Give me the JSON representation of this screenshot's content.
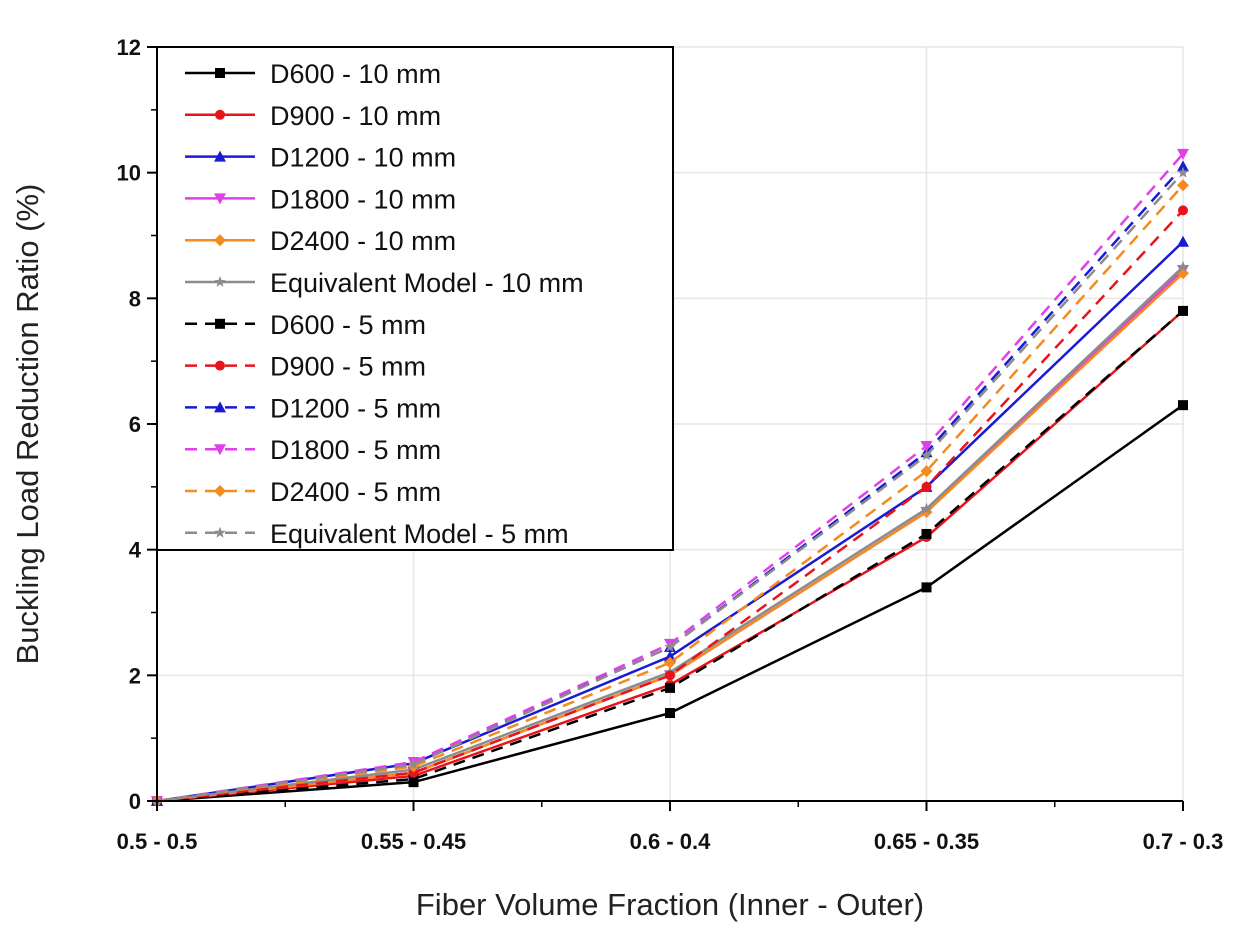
{
  "chart_data": {
    "type": "line",
    "title": "",
    "xlabel": "Fiber Volume Fraction (Inner - Outer)",
    "ylabel": "Buckling Load Reduction Ratio (%)",
    "categories": [
      "0.5 - 0.5",
      "0.55 - 0.45",
      "0.6 - 0.4",
      "0.65 - 0.35",
      "0.7 - 0.3"
    ],
    "ylim": [
      0,
      12
    ],
    "yticks": [
      "0",
      "2",
      "4",
      "6",
      "8",
      "10",
      "12"
    ],
    "grid": true,
    "legend_placement": "top-left",
    "series": [
      {
        "name": "D600 - 10 mm",
        "color": "#000000",
        "dash": false,
        "marker": "square",
        "values": [
          0,
          0.3,
          1.4,
          3.4,
          6.3
        ]
      },
      {
        "name": "D900 - 10 mm",
        "color": "#e8141c",
        "dash": false,
        "marker": "circle",
        "values": [
          0,
          0.4,
          1.85,
          4.2,
          7.8
        ]
      },
      {
        "name": "D1200 - 10 mm",
        "color": "#1a1ad4",
        "dash": false,
        "marker": "triangle-up",
        "values": [
          0,
          0.6,
          2.3,
          5.0,
          8.9
        ]
      },
      {
        "name": "D1800 - 10 mm",
        "color": "#e040e8",
        "dash": false,
        "marker": "triangle-down",
        "values": [
          0,
          0.45,
          2.0,
          4.6,
          8.45
        ]
      },
      {
        "name": "D2400 - 10 mm",
        "color": "#f58a1f",
        "dash": false,
        "marker": "diamond",
        "values": [
          0,
          0.45,
          2.0,
          4.6,
          8.4
        ]
      },
      {
        "name": "Equivalent Model - 10 mm",
        "color": "#8c8c8c",
        "dash": false,
        "marker": "star",
        "values": [
          0,
          0.5,
          2.05,
          4.65,
          8.5
        ]
      },
      {
        "name": "D600 - 5 mm",
        "color": "#000000",
        "dash": true,
        "marker": "square",
        "values": [
          0,
          0.35,
          1.8,
          4.25,
          7.8
        ]
      },
      {
        "name": "D900 - 5 mm",
        "color": "#e8141c",
        "dash": true,
        "marker": "circle",
        "values": [
          0,
          0.45,
          2.0,
          5.0,
          9.4
        ]
      },
      {
        "name": "D1200 - 5 mm",
        "color": "#1a1ad4",
        "dash": true,
        "marker": "triangle-up",
        "values": [
          0,
          0.6,
          2.45,
          5.55,
          10.1
        ]
      },
      {
        "name": "D1800 - 5 mm",
        "color": "#e040e8",
        "dash": true,
        "marker": "triangle-down",
        "values": [
          0,
          0.62,
          2.5,
          5.65,
          10.3
        ]
      },
      {
        "name": "D2400 - 5 mm",
        "color": "#f58a1f",
        "dash": true,
        "marker": "diamond",
        "values": [
          0,
          0.55,
          2.2,
          5.25,
          9.8
        ]
      },
      {
        "name": "Equivalent Model - 5 mm",
        "color": "#8c8c8c",
        "dash": true,
        "marker": "star",
        "values": [
          0,
          0.58,
          2.45,
          5.5,
          10.0
        ]
      }
    ]
  }
}
